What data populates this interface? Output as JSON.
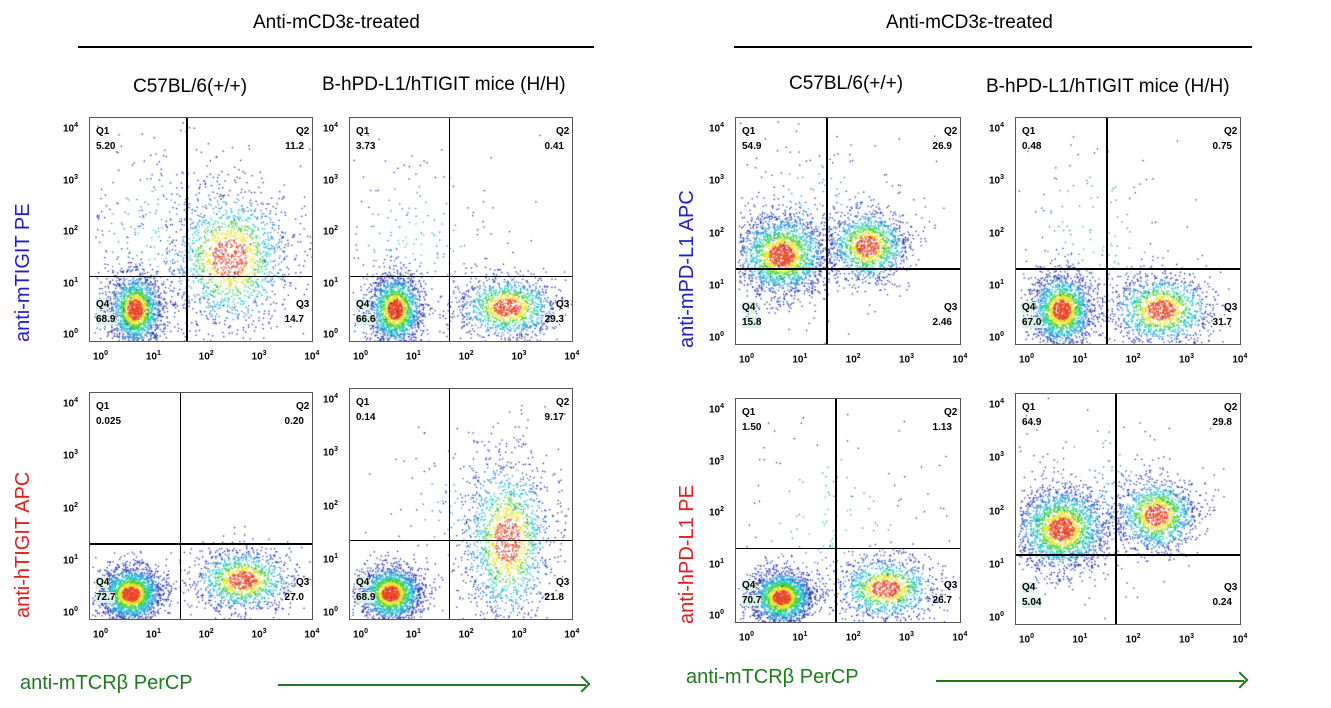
{
  "figure": {
    "left_group": {
      "title": "Anti-mCD3ε-treated",
      "col_headers": [
        "C57BL/6(+/+)",
        "B-hPD-L1/hTIGIT mice (H/H)"
      ],
      "row_labels": [
        {
          "text": "anti-mTIGIT PE",
          "color": "#2020c8"
        },
        {
          "text": "anti-hTIGIT APC",
          "color": "#e02020"
        }
      ],
      "x_axis_label": "anti-mTCRβ PerCP"
    },
    "right_group": {
      "title": "Anti-mCD3ε-treated",
      "col_headers": [
        "C57BL/6(+/+)",
        "B-hPD-L1/hTIGIT mice (H/H)"
      ],
      "row_labels": [
        {
          "text": "anti-mPD-L1 APC",
          "color": "#2020c8"
        },
        {
          "text": "anti-hPD-L1 PE",
          "color": "#e02020"
        }
      ],
      "x_axis_label": "anti-mTCRβ PerCP"
    },
    "axis_ticks": [
      "10",
      "10",
      "10",
      "10",
      "10"
    ],
    "axis_exponents": [
      "0",
      "1",
      "2",
      "3",
      "4"
    ]
  },
  "chart_data": [
    {
      "type": "scatter",
      "panel": "A1",
      "q_labels": [
        "Q1",
        "Q2",
        "Q3",
        "Q4"
      ],
      "quadrants": {
        "Q1": "5.20",
        "Q2": "11.2",
        "Q3": "14.7",
        "Q4": "68.9"
      }
    },
    {
      "type": "scatter",
      "panel": "A2",
      "q_labels": [
        "Q1",
        "Q2",
        "Q3",
        "Q4"
      ],
      "quadrants": {
        "Q1": "3.73",
        "Q2": "0.41",
        "Q3": "29.3",
        "Q4": "66.6"
      }
    },
    {
      "type": "scatter",
      "panel": "A3",
      "q_labels": [
        "Q1",
        "Q2",
        "Q3",
        "Q4"
      ],
      "quadrants": {
        "Q1": "0.025",
        "Q2": "0.20",
        "Q3": "27.0",
        "Q4": "72.7"
      }
    },
    {
      "type": "scatter",
      "panel": "A4",
      "q_labels": [
        "Q1",
        "Q2",
        "Q3",
        "Q4"
      ],
      "quadrants": {
        "Q1": "0.14",
        "Q2": "9.17",
        "Q3": "21.8",
        "Q4": "68.9"
      }
    },
    {
      "type": "scatter",
      "panel": "B1",
      "q_labels": [
        "Q1",
        "Q2",
        "Q3",
        "Q4"
      ],
      "quadrants": {
        "Q1": "54.9",
        "Q2": "26.9",
        "Q3": "2.46",
        "Q4": "15.8"
      }
    },
    {
      "type": "scatter",
      "panel": "B2",
      "q_labels": [
        "Q1",
        "Q2",
        "Q3",
        "Q4"
      ],
      "quadrants": {
        "Q1": "0.48",
        "Q2": "0.75",
        "Q3": "31.7",
        "Q4": "67.0"
      }
    },
    {
      "type": "scatter",
      "panel": "B3",
      "q_labels": [
        "Q1",
        "Q2",
        "Q3",
        "Q4"
      ],
      "quadrants": {
        "Q1": "1.50",
        "Q2": "1.13",
        "Q3": "26.7",
        "Q4": "70.7"
      }
    },
    {
      "type": "scatter",
      "panel": "B4",
      "q_labels": [
        "Q1",
        "Q2",
        "Q3",
        "Q4"
      ],
      "quadrants": {
        "Q1": "64.9",
        "Q2": "29.8",
        "Q3": "0.24",
        "Q4": "5.04"
      }
    }
  ]
}
